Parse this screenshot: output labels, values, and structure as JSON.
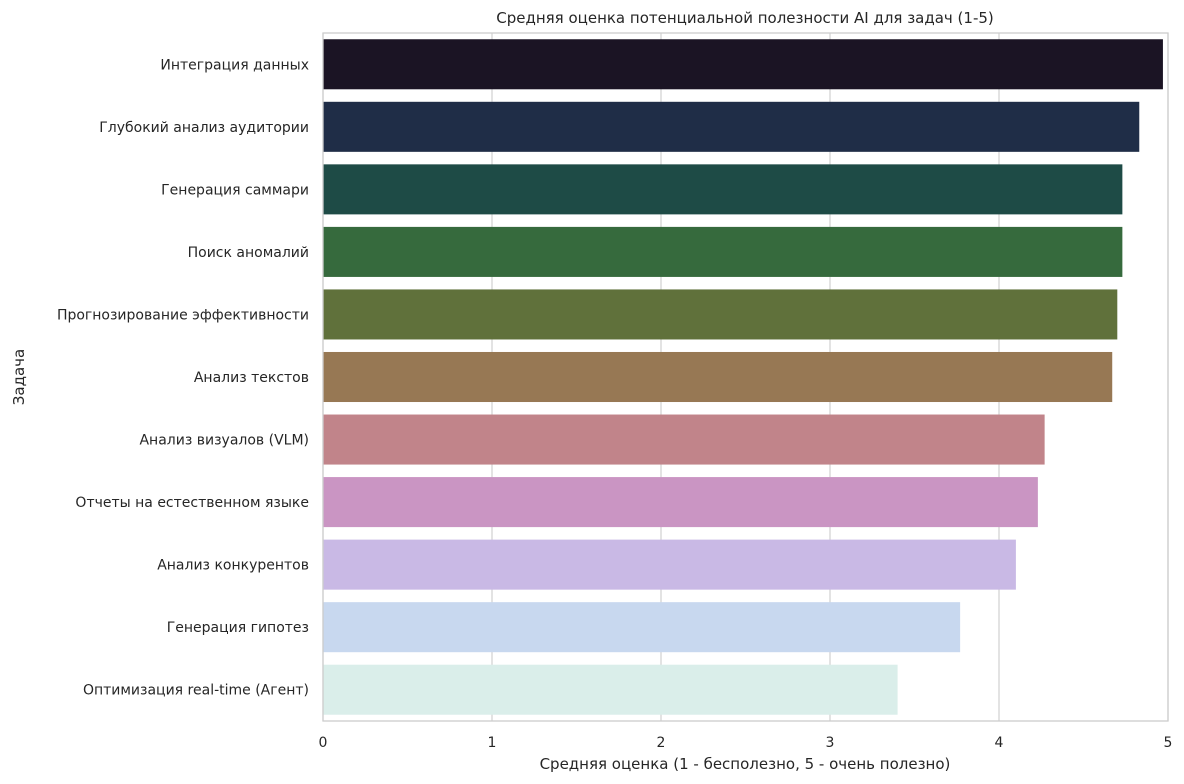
{
  "chart_data": {
    "type": "bar",
    "orientation": "horizontal",
    "title": "Средняя оценка потенциальной полезности AI для задач (1-5)",
    "xlabel": "Средняя оценка (1 - бесполезно, 5 - очень полезно)",
    "ylabel": "Задача",
    "xlim": [
      0,
      5
    ],
    "xticks": [
      "0",
      "1",
      "2",
      "3",
      "4",
      "5"
    ],
    "grid": true,
    "categories": [
      "Интеграция данных",
      "Глубокий анализ аудитории",
      "Генерация саммари",
      "Поиск аномалий",
      "Прогнозирование эффективности",
      "Анализ текстов",
      "Анализ визуалов (VLM)",
      "Отчеты на естественном языке",
      "Анализ конкурентов",
      "Генерация гипотез",
      "Оптимизация real-time (Агент)"
    ],
    "values": [
      4.97,
      4.83,
      4.73,
      4.73,
      4.7,
      4.67,
      4.27,
      4.23,
      4.1,
      3.77,
      3.4
    ],
    "colors": [
      "#1b1424",
      "#1f2d47",
      "#1e4b46",
      "#366a3d",
      "#60713b",
      "#977854",
      "#c1848a",
      "#ca95c3",
      "#c9b9e5",
      "#c8d8ef",
      "#daeeea"
    ]
  }
}
